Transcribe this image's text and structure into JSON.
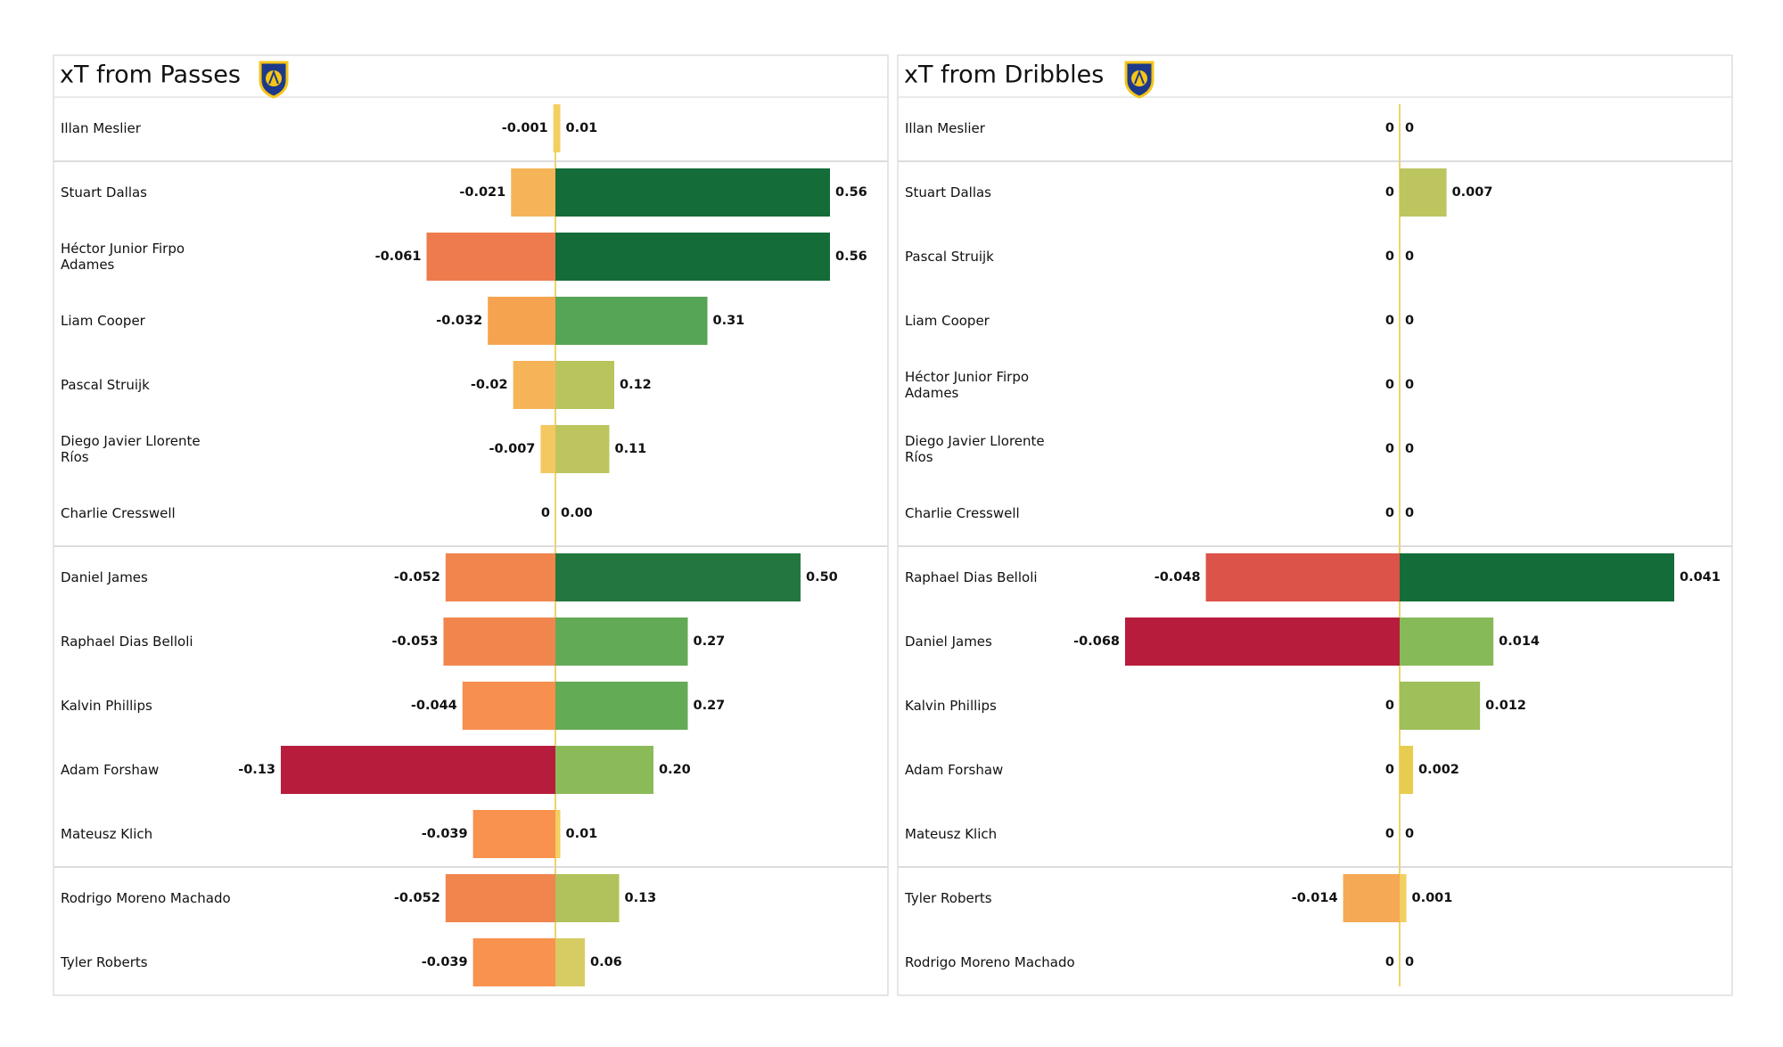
{
  "chart_data": [
    {
      "type": "diverging-bar",
      "title": "xT from Passes",
      "categories": [
        "Illan Meslier",
        "Stuart Dallas",
        "Héctor Junior Firpo Adames",
        "Liam Cooper",
        "Pascal Struijk",
        "Diego Javier Llorente Ríos",
        "Charlie Cresswell",
        "Daniel James",
        "Raphael Dias Belloli",
        "Kalvin Phillips",
        "Adam Forshaw",
        "Mateusz Klich",
        "Rodrigo Moreno Machado",
        "Tyler Roberts"
      ],
      "series": [
        {
          "values": [
            -0.001,
            -0.021,
            -0.061,
            -0.032,
            -0.02,
            -0.007,
            0,
            -0.052,
            -0.053,
            -0.044,
            -0.13,
            -0.039,
            -0.052,
            -0.039
          ],
          "colors": [
            "#f5d060",
            "#f5b458",
            "#ee7b4d",
            "#f6a350",
            "#f5b458",
            "#f4c860",
            "#ecd569",
            "#f0864e",
            "#f0864e",
            "#f78f4f",
            "#b81c3c",
            "#f8924e",
            "#f0864e",
            "#f8924e"
          ]
        },
        {
          "values": [
            0.01,
            0.56,
            0.56,
            0.31,
            0.12,
            0.11,
            0,
            0.5,
            0.27,
            0.27,
            0.2,
            0.01,
            0.13,
            0.06
          ],
          "value_labels": [
            "0.01",
            "0.56",
            "0.56",
            "0.31",
            "0.12",
            "0.11",
            "0.00",
            "0.50",
            "0.27",
            "0.27",
            "0.20",
            "0.01",
            "0.13",
            "0.06"
          ],
          "colors": [
            "#f2cf60",
            "#146c39",
            "#146c39",
            "#56a456",
            "#b9c45c",
            "#bcc55e",
            "#ecd569",
            "#23773e",
            "#63aa56",
            "#64ab56",
            "#8bbb58",
            "#f2cf60",
            "#b1c25c",
            "#d7cb63"
          ]
        }
      ]
    },
    {
      "type": "diverging-bar",
      "title": "xT from Dribbles",
      "categories": [
        "Illan Meslier",
        "Stuart Dallas",
        "Pascal Struijk",
        "Liam Cooper",
        "Héctor Junior Firpo Adames",
        "Diego Javier Llorente Ríos",
        "Charlie Cresswell",
        "Raphael Dias Belloli",
        "Daniel James",
        "Kalvin Phillips",
        "Adam Forshaw",
        "Mateusz Klich",
        "Tyler Roberts",
        "Rodrigo Moreno Machado"
      ],
      "series": [
        {
          "values": [
            0,
            0,
            0,
            0,
            0,
            0,
            0,
            -0.048,
            -0.068,
            0,
            0,
            0,
            -0.014,
            0
          ],
          "colors": [
            "#ecd569",
            "#ecd569",
            "#ecd569",
            "#ecd569",
            "#ecd569",
            "#ecd569",
            "#ecd569",
            "#dc5349",
            "#b81c3c",
            "#ecd569",
            "#ecd569",
            "#ecd569",
            "#f5a955",
            "#ecd569"
          ]
        },
        {
          "values": [
            0,
            0.007,
            0,
            0,
            0,
            0,
            0,
            0.041,
            0.014,
            0.012,
            0.002,
            0,
            0.001,
            0
          ],
          "colors": [
            "#ecd569",
            "#bcc55e",
            "#ecd569",
            "#ecd569",
            "#ecd569",
            "#ecd569",
            "#ecd569",
            "#146c39",
            "#86ba58",
            "#9ebf5a",
            "#e8cc50",
            "#ecd569",
            "#f2cf60",
            "#ecd569"
          ]
        }
      ]
    }
  ]
}
